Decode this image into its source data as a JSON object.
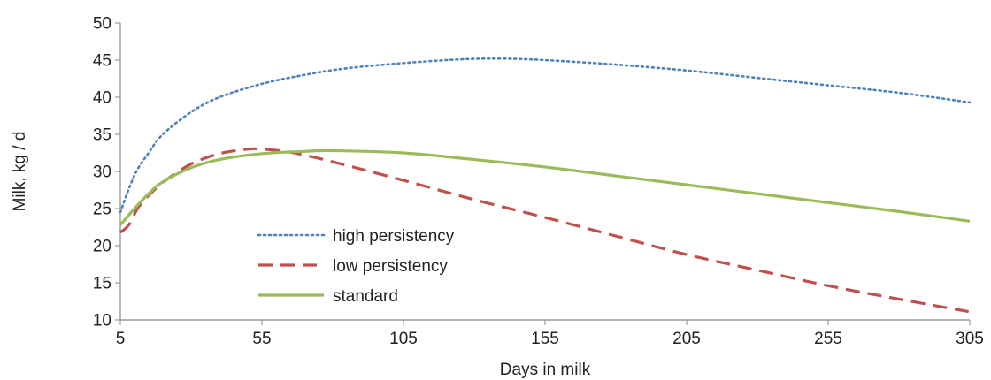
{
  "chart_data": {
    "type": "line",
    "xlabel": "Days in milk",
    "ylabel": "Milk, kg / d",
    "xlim": [
      5,
      305
    ],
    "ylim": [
      10,
      50
    ],
    "xticks": [
      5,
      55,
      105,
      155,
      205,
      255,
      305
    ],
    "yticks": [
      10,
      15,
      20,
      25,
      30,
      35,
      40,
      45,
      50
    ],
    "grid": false,
    "legend": "bottom-left",
    "series": [
      {
        "name": "high persistency",
        "color": "#4f81bd",
        "style": "dotted",
        "x": [
          5,
          10,
          15,
          20,
          30,
          40,
          55,
          70,
          85,
          105,
          125,
          140,
          155,
          180,
          205,
          230,
          255,
          280,
          305
        ],
        "y": [
          24.5,
          29.5,
          32.5,
          35.0,
          38.0,
          40.0,
          41.8,
          43.0,
          43.9,
          44.6,
          45.1,
          45.2,
          45.0,
          44.4,
          43.6,
          42.6,
          41.6,
          40.6,
          39.3
        ]
      },
      {
        "name": "low persistency",
        "color": "#c0504d",
        "style": "dashed",
        "x": [
          5,
          8,
          12,
          20,
          30,
          40,
          50,
          55,
          65,
          80,
          105,
          130,
          155,
          180,
          205,
          230,
          255,
          280,
          305
        ],
        "y": [
          21.8,
          22.8,
          25.5,
          28.5,
          31.0,
          32.4,
          33.0,
          33.0,
          32.6,
          31.3,
          28.8,
          26.2,
          23.8,
          21.3,
          18.8,
          16.7,
          14.6,
          12.8,
          11.1
        ]
      },
      {
        "name": "standard",
        "color": "#9bbb59",
        "style": "solid",
        "x": [
          5,
          10,
          15,
          20,
          30,
          40,
          55,
          70,
          80,
          105,
          130,
          155,
          180,
          205,
          230,
          255,
          280,
          305
        ],
        "y": [
          22.8,
          25.0,
          27.0,
          28.6,
          30.5,
          31.6,
          32.4,
          32.7,
          32.8,
          32.5,
          31.6,
          30.6,
          29.4,
          28.2,
          27.0,
          25.8,
          24.6,
          23.3
        ]
      }
    ]
  }
}
